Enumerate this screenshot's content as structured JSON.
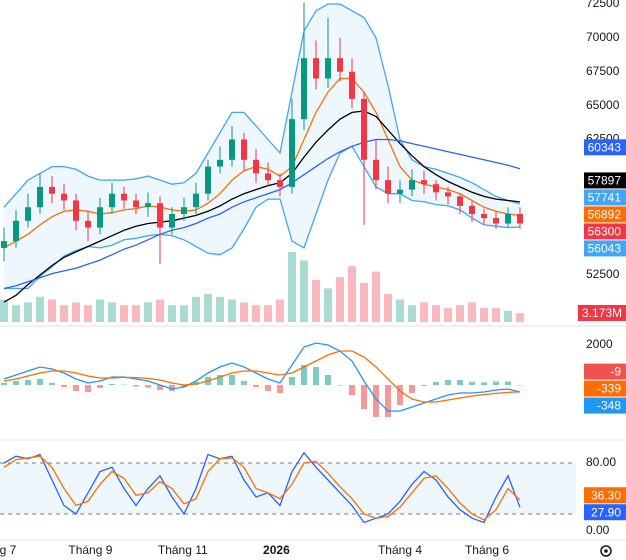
{
  "chart_data": {
    "type": "candlestick",
    "x_ticks": [
      {
        "index": 0.33,
        "label": "g 7"
      },
      {
        "index": 7.2,
        "label": "Tháng 9"
      },
      {
        "index": 14.9,
        "label": "Tháng 11"
      },
      {
        "index": 22.7,
        "label": "2026",
        "bold": true
      },
      {
        "index": 33,
        "label": "Tháng 4"
      },
      {
        "index": 40.25,
        "label": "Tháng 6"
      }
    ],
    "price": {
      "ylim": [
        49030,
        72795
      ],
      "yticks": [
        72500,
        70000,
        67500,
        65000,
        62500,
        52500
      ],
      "up_color": "#089981",
      "down_color": "#f23645",
      "open": [
        54500,
        55000,
        56500,
        57500,
        59000,
        58500,
        58000,
        56500,
        56000,
        57500,
        58500,
        58000,
        57500,
        57800,
        56000,
        57000,
        57500,
        58500,
        60500,
        61000,
        62500,
        61000,
        60000,
        59500,
        59000,
        64000,
        68500,
        67000,
        68500,
        67500,
        65500,
        61000,
        59500,
        58500,
        58800,
        59500,
        59200,
        58600,
        58300,
        57600,
        57000,
        56700,
        56300,
        57000
      ],
      "high": [
        56000,
        57300,
        58500,
        60000,
        59800,
        59200,
        58500,
        57200,
        58200,
        59300,
        59000,
        58500,
        58600,
        58300,
        57500,
        58200,
        59300,
        61000,
        62000,
        63500,
        63000,
        61800,
        60800,
        60000,
        65500,
        72600,
        69800,
        71500,
        70000,
        68500,
        66000,
        62500,
        60500,
        59500,
        60300,
        60200,
        59500,
        59000,
        58500,
        57900,
        57400,
        57200,
        57500,
        57500
      ],
      "low": [
        53500,
        54500,
        56000,
        57000,
        57800,
        57300,
        55800,
        55000,
        55500,
        57000,
        57400,
        57000,
        56800,
        53300,
        55500,
        56500,
        57000,
        58000,
        60000,
        60500,
        60200,
        59300,
        59000,
        58300,
        58500,
        63200,
        66200,
        66300,
        66800,
        64800,
        56200,
        58800,
        57800,
        57800,
        58300,
        58500,
        58000,
        57700,
        57000,
        56400,
        56200,
        55900,
        56000,
        55900
      ],
      "close": [
        55000,
        56500,
        57500,
        59000,
        58500,
        58000,
        56500,
        56000,
        57500,
        58500,
        58000,
        57500,
        57800,
        56000,
        57000,
        57500,
        58500,
        60500,
        61000,
        62500,
        61000,
        60000,
        59500,
        59000,
        64000,
        68500,
        67000,
        68500,
        67500,
        65500,
        61000,
        59500,
        58500,
        58800,
        59500,
        59200,
        58600,
        58300,
        57600,
        57000,
        56700,
        56300,
        57000,
        56300
      ],
      "fill_between": [
        0,
        1
      ],
      "fill_color": "rgba(33,150,243,0.08)",
      "overlays": [
        {
          "color": "#42a5f5",
          "values": [
            57500,
            58500,
            59500,
            60000,
            60500,
            60500,
            60300,
            59800,
            59500,
            59500,
            59500,
            59600,
            59800,
            59500,
            59200,
            59300,
            60000,
            61500,
            63000,
            64500,
            64500,
            63500,
            62500,
            61500,
            66000,
            70500,
            72000,
            72500,
            72500,
            72000,
            71500,
            70000,
            66500,
            62500,
            61000,
            60500,
            60300,
            60000,
            59700,
            59300,
            58800,
            58300,
            58000,
            57741
          ]
        },
        {
          "color": "#42a5f5",
          "values": [
            51500,
            51500,
            51500,
            52400,
            53100,
            53900,
            54300,
            54600,
            54500,
            54700,
            55100,
            55200,
            55400,
            55500,
            55400,
            55100,
            54600,
            54100,
            54000,
            54500,
            55900,
            57500,
            58100,
            58100,
            55000,
            54500,
            57000,
            59500,
            61500,
            62000,
            60500,
            59000,
            58500,
            58500,
            58000,
            57900,
            57700,
            57600,
            57300,
            56700,
            56200,
            56100,
            56000,
            56043
          ]
        },
        {
          "color": "#ff6d00",
          "values": [
            54500,
            55000,
            55500,
            56200,
            56800,
            57200,
            57300,
            57200,
            57000,
            57100,
            57300,
            57400,
            57600,
            57500,
            57300,
            57200,
            57300,
            57800,
            58500,
            59500,
            60200,
            60500,
            60300,
            59800,
            60500,
            62500,
            64500,
            66000,
            67000,
            67000,
            66000,
            64500,
            62500,
            60500,
            59500,
            59200,
            59000,
            58800,
            58500,
            58000,
            57500,
            57200,
            57000,
            56892
          ]
        },
        {
          "color": "#000000",
          "values": [
            50500,
            51000,
            51800,
            52500,
            53200,
            53800,
            54200,
            54600,
            55000,
            55400,
            55800,
            56100,
            56300,
            56400,
            56500,
            56700,
            56900,
            57200,
            57600,
            58100,
            58500,
            58800,
            59100,
            59300,
            60000,
            61200,
            62300,
            63200,
            64000,
            64500,
            64600,
            64200,
            63200,
            62200,
            61300,
            60500,
            59900,
            59400,
            59000,
            58600,
            58300,
            58100,
            58000,
            57897
          ]
        },
        {
          "color": "#2962ff",
          "values": [
            51500,
            51700,
            52000,
            52300,
            52600,
            52800,
            53000,
            53300,
            53600,
            54000,
            54400,
            54700,
            55100,
            55500,
            55800,
            56000,
            56300,
            56700,
            57000,
            57500,
            57900,
            58200,
            58500,
            58800,
            59300,
            59900,
            60500,
            61100,
            61600,
            62000,
            62300,
            62500,
            62500,
            62400,
            62200,
            62000,
            61800,
            61600,
            61400,
            61200,
            61000,
            60800,
            60600,
            60343
          ]
        }
      ]
    },
    "volume": {
      "values": [
        8,
        6,
        7,
        9,
        8,
        6,
        7,
        6,
        8,
        7,
        6,
        6,
        7,
        8,
        6,
        6,
        9,
        10,
        9,
        8,
        7,
        6,
        6,
        8,
        25,
        22,
        15,
        12,
        16,
        20,
        14,
        18,
        10,
        8,
        6,
        7,
        6,
        5,
        6,
        7,
        5,
        5,
        4,
        3.173
      ],
      "last_value_label": "3.173M"
    },
    "macd": {
      "ylim": [
        -2750,
        2750
      ],
      "yticks": [
        2000
      ],
      "series": [
        {
          "color": "#2196f3",
          "values": [
            300,
            500,
            700,
            900,
            800,
            600,
            300,
            100,
            200,
            400,
            400,
            300,
            200,
            0,
            -200,
            -100,
            200,
            600,
            900,
            1100,
            900,
            600,
            300,
            100,
            1000,
            1900,
            2100,
            2000,
            1700,
            1200,
            200,
            -700,
            -1300,
            -1300,
            -1100,
            -900,
            -700,
            -500,
            -400,
            -400,
            -350,
            -250,
            -200,
            -348
          ]
        },
        {
          "color": "#ff6d00",
          "values": [
            200,
            300,
            450,
            600,
            700,
            700,
            600,
            450,
            350,
            350,
            380,
            370,
            330,
            250,
            100,
            0,
            50,
            200,
            400,
            600,
            700,
            700,
            600,
            500,
            600,
            900,
            1200,
            1500,
            1700,
            1700,
            1400,
            900,
            300,
            -300,
            -700,
            -850,
            -850,
            -750,
            -650,
            -550,
            -480,
            -420,
            -370,
            -339
          ]
        }
      ],
      "histogram": {
        "up_color": "#26a69a",
        "down_color": "#ef5350",
        "values": [
          100,
          200,
          250,
          300,
          100,
          -100,
          -300,
          -350,
          -150,
          50,
          20,
          -70,
          -130,
          -250,
          -300,
          -100,
          150,
          400,
          500,
          500,
          200,
          -100,
          -300,
          -400,
          400,
          1000,
          900,
          500,
          0,
          -500,
          -1200,
          -1600,
          -1600,
          -1000,
          -400,
          -50,
          150,
          250,
          250,
          150,
          130,
          170,
          170,
          -9
        ]
      }
    },
    "stoch": {
      "ylim": [
        -10.6,
        101.2
      ],
      "yticks": [
        {
          "value": 80,
          "label": "80.00"
        },
        {
          "value": 0,
          "label": "0.00"
        }
      ],
      "bands": [
        20,
        80
      ],
      "band_fill": "rgba(33,150,243,0.08)",
      "series": [
        {
          "color": "#2962ff",
          "values": [
            80,
            88,
            85,
            90,
            60,
            30,
            20,
            45,
            70,
            75,
            50,
            30,
            50,
            65,
            40,
            20,
            50,
            90,
            85,
            88,
            60,
            40,
            45,
            30,
            70,
            92,
            75,
            60,
            45,
            30,
            10,
            15,
            20,
            35,
            55,
            70,
            60,
            40,
            25,
            15,
            10,
            40,
            65,
            27.9
          ],
          "last_value_label": "27.90"
        },
        {
          "color": "#ff6d00",
          "values": [
            75,
            84,
            86,
            88,
            75,
            50,
            30,
            35,
            55,
            70,
            62,
            42,
            45,
            58,
            50,
            32,
            38,
            70,
            85,
            86,
            75,
            50,
            45,
            38,
            55,
            80,
            82,
            68,
            52,
            38,
            20,
            15,
            17,
            28,
            45,
            62,
            65,
            50,
            33,
            20,
            13,
            25,
            50,
            36.3
          ],
          "last_value_label": "36.30"
        }
      ]
    }
  }
}
